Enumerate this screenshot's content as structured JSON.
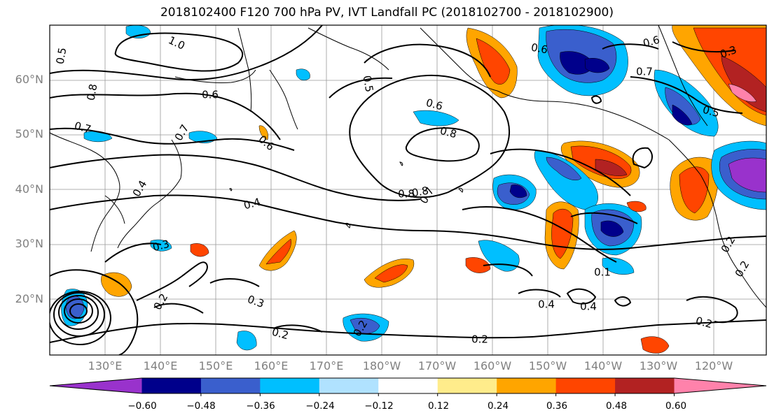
{
  "title": "2018102400 F120 700 hPa PV, IVT Landfall PC (2018102700 - 2018102900)",
  "lat_labels": [
    "60°N",
    "50°N",
    "40°N",
    "30°N",
    "20°N"
  ],
  "lon_labels": [
    "130°E",
    "140°E",
    "150°E",
    "160°E",
    "170°E",
    "180°W",
    "170°W",
    "160°W",
    "150°W",
    "140°W",
    "130°W",
    "120°W"
  ],
  "colorbar": {
    "labels": [
      "−0.60",
      "−0.48",
      "−0.36",
      "−0.24",
      "−0.12",
      "0.12",
      "0.24",
      "0.36",
      "0.48",
      "0.60"
    ],
    "colors": [
      "#9932cc",
      "#00008b",
      "#3a5fcd",
      "#00bfff",
      "#b0e2ff",
      "#ffffff",
      "#ffec8b",
      "#ffa500",
      "#ff4500",
      "#b22222",
      "#ff82ab"
    ]
  },
  "contour_labels": [
    "1.0",
    "0.5",
    "0.8",
    "0.7",
    "0.6",
    "0.6",
    "0.6",
    "0.8",
    "0.8",
    "0.6",
    "0.7",
    "0.5",
    "0.5",
    "0.3",
    "0.6",
    "0.7",
    "0.4",
    "0.8",
    "0.7",
    "0.4",
    "0.3",
    "0.2",
    "0.3",
    "0.2",
    "0.2",
    "0.2",
    "0.4",
    "0.4",
    "0.2",
    "0.2",
    "0.2",
    "0.1"
  ]
}
